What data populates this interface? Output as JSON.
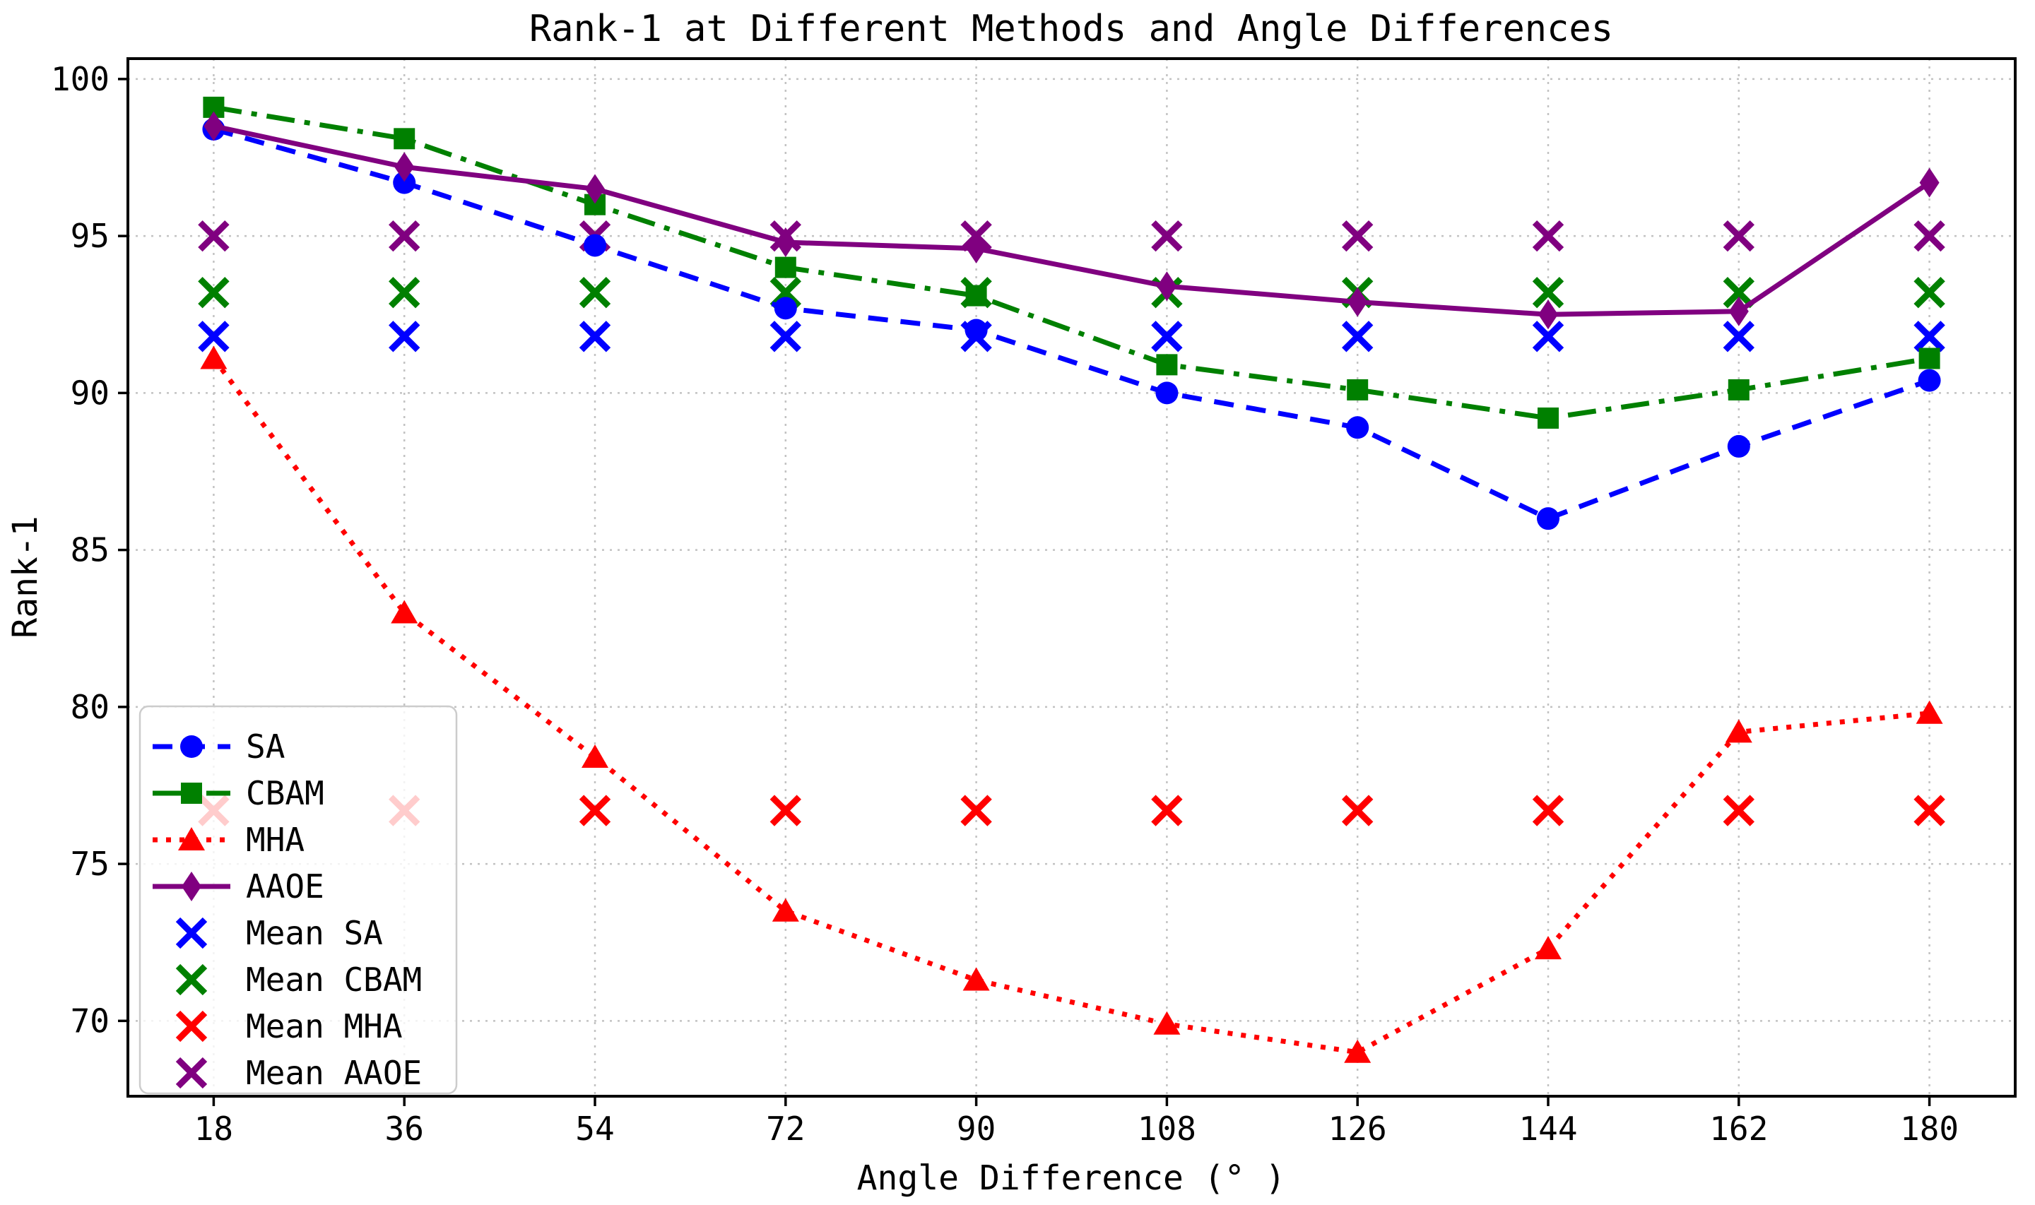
{
  "page": {
    "background": "#ffffff"
  },
  "chart_data": {
    "type": "line",
    "title": "Rank-1 at Different Methods and Angle Differences",
    "xlabel": "Angle Difference (° )",
    "ylabel": "Rank-1",
    "x": [
      18,
      36,
      54,
      72,
      90,
      108,
      126,
      144,
      162,
      180
    ],
    "xtick_labels": [
      "18",
      "36",
      "54",
      "72",
      "90",
      "108",
      "126",
      "144",
      "162",
      "180"
    ],
    "yticks": [
      70,
      75,
      80,
      85,
      90,
      95,
      100
    ],
    "ytick_labels": [
      "70",
      "75",
      "80",
      "85",
      "90",
      "95",
      "100"
    ],
    "xlim": [
      9.9,
      188.1
    ],
    "ylim": [
      67.6,
      100.65
    ],
    "grid": true,
    "grid_style": "dotted",
    "grid_color": "#c2c2c2",
    "axis_color": "#000000",
    "legend_position": "lower-left",
    "legend_border_color": "#cccccc",
    "legend_background": "rgba(255,255,255,0.8)",
    "series": [
      {
        "name": "SA",
        "color": "#0000ff",
        "linestyle": "dashed",
        "marker": "circle",
        "values": [
          98.4,
          96.7,
          94.7,
          92.7,
          92.0,
          90.0,
          88.9,
          86.0,
          88.3,
          90.4
        ]
      },
      {
        "name": "CBAM",
        "color": "#008000",
        "linestyle": "dashdot",
        "marker": "square",
        "values": [
          99.1,
          98.1,
          96.0,
          94.0,
          93.1,
          90.9,
          90.1,
          89.2,
          90.1,
          91.1
        ]
      },
      {
        "name": "MHA",
        "color": "#ff0000",
        "linestyle": "dotted",
        "marker": "triangle",
        "values": [
          91.1,
          83.0,
          78.4,
          73.5,
          71.3,
          69.9,
          69.0,
          72.3,
          79.2,
          79.8
        ]
      },
      {
        "name": "AAOE",
        "color": "#800080",
        "linestyle": "solid",
        "marker": "diamond",
        "values": [
          98.5,
          97.2,
          96.5,
          94.8,
          94.6,
          93.4,
          92.9,
          92.5,
          92.6,
          96.7
        ]
      }
    ],
    "mean_series": [
      {
        "name": "Mean SA",
        "color": "#0000ff",
        "marker": "x",
        "value": 91.8
      },
      {
        "name": "Mean CBAM",
        "color": "#008000",
        "marker": "x",
        "value": 93.2
      },
      {
        "name": "Mean MHA",
        "color": "#ff0000",
        "marker": "x",
        "value": 76.7
      },
      {
        "name": "Mean AAOE",
        "color": "#800080",
        "marker": "x",
        "value": 95.0
      }
    ]
  }
}
